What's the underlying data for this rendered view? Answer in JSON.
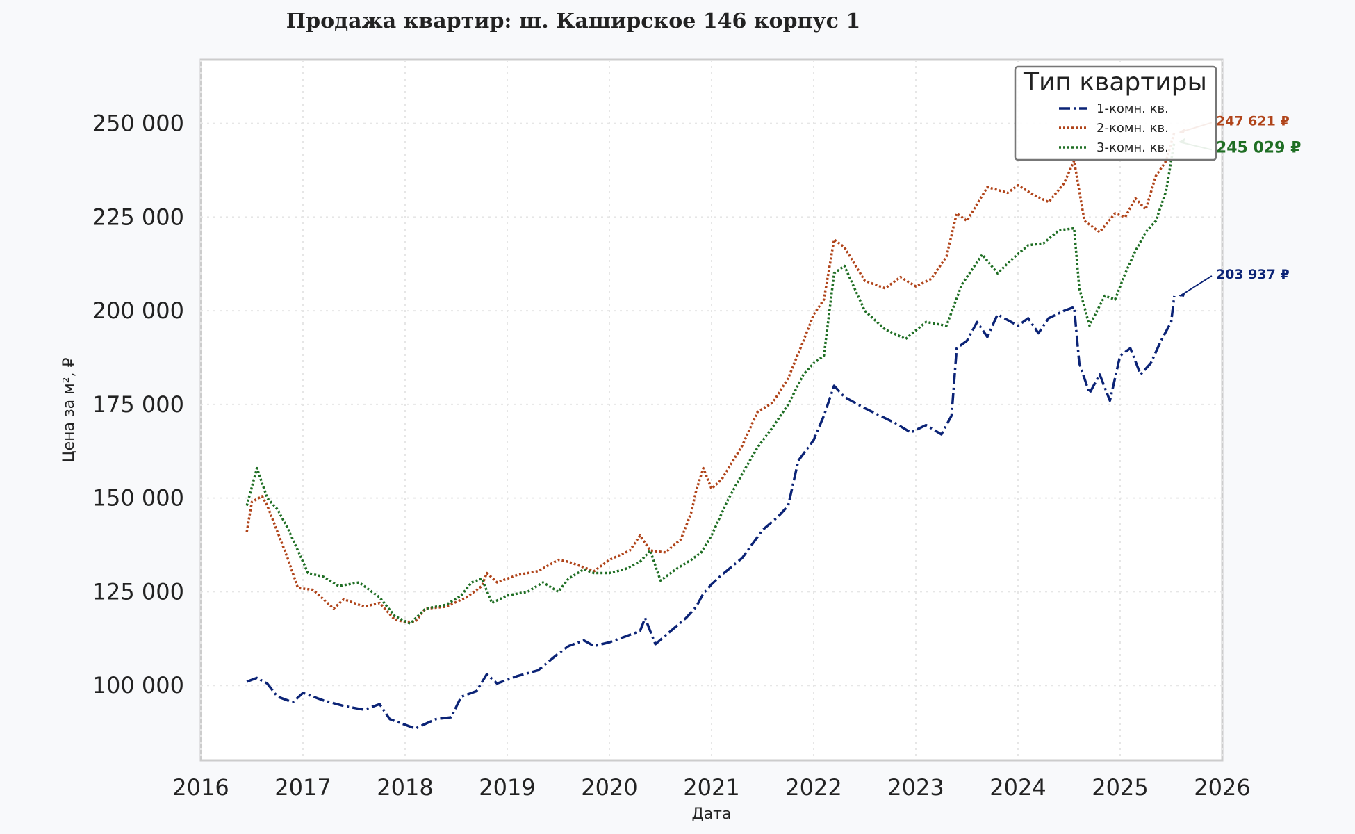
{
  "chart_data": {
    "type": "line",
    "title": "Продажа квартир: ш. Каширское 146 корпус 1",
    "xlabel": "Дата",
    "ylabel": "Цена за м², ₽",
    "xlim": [
      2016,
      2026
    ],
    "ylim": [
      80000,
      267000
    ],
    "x_ticks": [
      "2016",
      "2017",
      "2018",
      "2019",
      "2020",
      "2021",
      "2022",
      "2023",
      "2024",
      "2025",
      "2026"
    ],
    "y_ticks": [
      "100 000",
      "125 000",
      "150 000",
      "175 000",
      "200 000",
      "225 000",
      "250 000"
    ],
    "grid": true,
    "legend": {
      "title": "Тип квартиры",
      "placement": "top-right"
    },
    "series": [
      {
        "name": "1-комн. кв.",
        "color": "#0b2376",
        "style": "dashdot",
        "end_label": "203 937 ₽",
        "x": [
          2016.45,
          2016.55,
          2016.65,
          2016.75,
          2016.9,
          2017.0,
          2017.2,
          2017.4,
          2017.6,
          2017.75,
          2017.85,
          2017.95,
          2018.1,
          2018.3,
          2018.45,
          2018.55,
          2018.7,
          2018.8,
          2018.9,
          2019.1,
          2019.3,
          2019.5,
          2019.6,
          2019.75,
          2019.85,
          2020.0,
          2020.15,
          2020.3,
          2020.35,
          2020.45,
          2020.6,
          2020.75,
          2020.85,
          2020.92,
          2021.0,
          2021.1,
          2021.3,
          2021.5,
          2021.65,
          2021.75,
          2021.85,
          2022.0,
          2022.1,
          2022.2,
          2022.3,
          2022.5,
          2022.65,
          2022.8,
          2022.95,
          2023.1,
          2023.25,
          2023.35,
          2023.4,
          2023.5,
          2023.6,
          2023.7,
          2023.8,
          2024.0,
          2024.1,
          2024.2,
          2024.3,
          2024.45,
          2024.55,
          2024.6,
          2024.7,
          2024.8,
          2024.9,
          2025.0,
          2025.1,
          2025.2,
          2025.3,
          2025.4,
          2025.5,
          2025.53
        ],
        "y": [
          101000,
          102000,
          100500,
          97000,
          95500,
          98000,
          96000,
          94500,
          93500,
          95000,
          91000,
          90000,
          88500,
          91000,
          91500,
          97000,
          98500,
          103000,
          100500,
          102500,
          104000,
          108500,
          110500,
          112000,
          110500,
          111500,
          113000,
          114500,
          118000,
          111000,
          114500,
          118000,
          121000,
          124500,
          127000,
          129500,
          134000,
          141500,
          145000,
          148000,
          160000,
          165500,
          172000,
          180000,
          177000,
          174000,
          172000,
          170000,
          167500,
          169500,
          167000,
          172000,
          190000,
          192000,
          197000,
          193000,
          199000,
          196000,
          198000,
          194000,
          198000,
          200000,
          201000,
          186000,
          178000,
          183000,
          176000,
          188000,
          190000,
          183000,
          186000,
          192000,
          197000,
          203937
        ]
      },
      {
        "name": "2-комн. кв.",
        "color": "#b0441a",
        "style": "dotted",
        "end_label": "247 621 ₽",
        "x": [
          2016.45,
          2016.5,
          2016.6,
          2016.65,
          2016.75,
          2016.85,
          2016.95,
          2017.1,
          2017.3,
          2017.4,
          2017.6,
          2017.75,
          2017.9,
          2018.0,
          2018.1,
          2018.2,
          2018.4,
          2018.6,
          2018.75,
          2018.8,
          2018.9,
          2019.1,
          2019.3,
          2019.5,
          2019.6,
          2019.75,
          2019.85,
          2020.0,
          2020.2,
          2020.3,
          2020.4,
          2020.55,
          2020.7,
          2020.8,
          2020.85,
          2020.92,
          2021.0,
          2021.1,
          2021.3,
          2021.45,
          2021.6,
          2021.75,
          2021.9,
          2022.0,
          2022.1,
          2022.2,
          2022.3,
          2022.5,
          2022.7,
          2022.85,
          2023.0,
          2023.15,
          2023.3,
          2023.4,
          2023.5,
          2023.7,
          2023.9,
          2024.0,
          2024.15,
          2024.3,
          2024.45,
          2024.55,
          2024.65,
          2024.8,
          2024.95,
          2025.05,
          2025.15,
          2025.25,
          2025.35,
          2025.45,
          2025.53
        ],
        "y": [
          141000,
          149000,
          150500,
          148000,
          141000,
          134000,
          126000,
          125500,
          120500,
          123000,
          121000,
          122000,
          117500,
          117000,
          117000,
          120500,
          121000,
          123500,
          126500,
          130000,
          127500,
          129500,
          130500,
          133500,
          133000,
          131500,
          130500,
          133500,
          136000,
          140000,
          136000,
          135500,
          139000,
          146000,
          152000,
          158000,
          152500,
          155000,
          164000,
          173000,
          175500,
          182000,
          192000,
          199000,
          203000,
          219000,
          217000,
          208000,
          206000,
          209000,
          206500,
          208500,
          214500,
          226000,
          224000,
          233000,
          231500,
          233500,
          231000,
          229000,
          234000,
          240000,
          224000,
          221000,
          226000,
          225000,
          230000,
          227000,
          236000,
          240000,
          247621
        ]
      },
      {
        "name": "3-комн. кв.",
        "color": "#1f6e24",
        "style": "dotted",
        "end_label": "245 029 ₽",
        "x": [
          2016.45,
          2016.55,
          2016.65,
          2016.75,
          2016.85,
          2016.95,
          2017.05,
          2017.2,
          2017.35,
          2017.55,
          2017.75,
          2017.9,
          2018.05,
          2018.2,
          2018.4,
          2018.55,
          2018.65,
          2018.75,
          2018.85,
          2019.0,
          2019.2,
          2019.35,
          2019.5,
          2019.6,
          2019.75,
          2019.85,
          2020.0,
          2020.15,
          2020.3,
          2020.4,
          2020.5,
          2020.65,
          2020.8,
          2020.9,
          2021.0,
          2021.15,
          2021.3,
          2021.45,
          2021.6,
          2021.75,
          2021.9,
          2022.0,
          2022.1,
          2022.2,
          2022.3,
          2022.5,
          2022.7,
          2022.9,
          2023.1,
          2023.3,
          2023.45,
          2023.55,
          2023.65,
          2023.8,
          2023.95,
          2024.1,
          2024.25,
          2024.4,
          2024.55,
          2024.6,
          2024.7,
          2024.85,
          2024.95,
          2025.05,
          2025.15,
          2025.25,
          2025.35,
          2025.45,
          2025.53
        ],
        "y": [
          148000,
          158000,
          150000,
          147000,
          142000,
          136000,
          130000,
          129000,
          126500,
          127500,
          123500,
          118500,
          116500,
          120500,
          121500,
          124000,
          127500,
          128500,
          122000,
          124000,
          125000,
          127500,
          125000,
          128500,
          131000,
          130000,
          130000,
          131000,
          133000,
          136000,
          128000,
          131000,
          133500,
          135500,
          140000,
          149000,
          156500,
          163500,
          169000,
          175000,
          183000,
          186000,
          188000,
          210000,
          212000,
          200000,
          195000,
          192500,
          197000,
          196000,
          207000,
          211000,
          215000,
          210000,
          214000,
          217500,
          218000,
          221500,
          222000,
          206000,
          196000,
          204000,
          203000,
          210000,
          216000,
          221000,
          224000,
          232000,
          245029
        ]
      }
    ]
  }
}
